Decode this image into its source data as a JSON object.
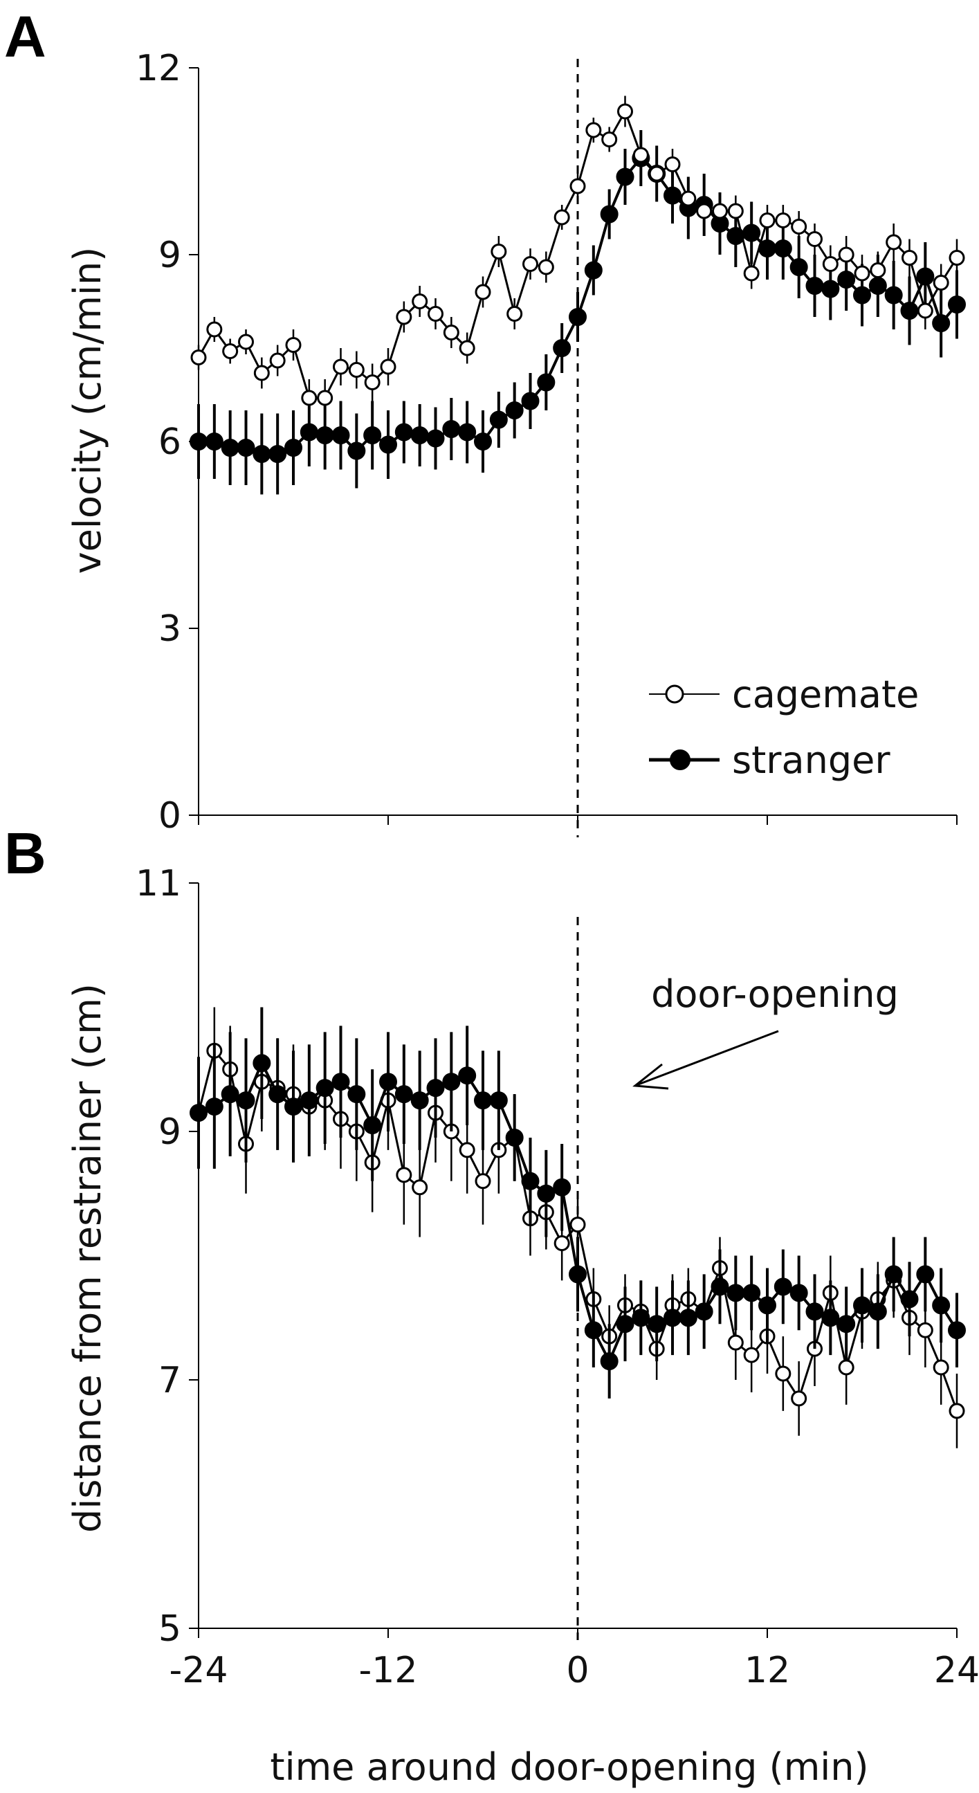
{
  "chart_data": [
    {
      "panel": "A",
      "type": "line",
      "ylabel": "velocity (cm/min)",
      "xlabel": "",
      "ylim": [
        0,
        12
      ],
      "yticks": [
        "0",
        "3",
        "6",
        "9",
        "12"
      ],
      "xlim": [
        -24,
        24
      ],
      "event_line_x": 0,
      "legend": {
        "placement": "bottom-right",
        "items": [
          "cagemate",
          "stranger"
        ]
      },
      "x": [
        -24,
        -23,
        -22,
        -21,
        -20,
        -19,
        -18,
        -17,
        -16,
        -15,
        -14,
        -13,
        -12,
        -11,
        -10,
        -9,
        -8,
        -7,
        -6,
        -5,
        -4,
        -3,
        -2,
        -1,
        0,
        1,
        2,
        3,
        4,
        5,
        6,
        7,
        8,
        9,
        10,
        11,
        12,
        13,
        14,
        15,
        16,
        17,
        18,
        19,
        20,
        21,
        22,
        23,
        24
      ],
      "series": [
        {
          "name": "cagemate",
          "marker": "open-circle",
          "color": "#000000",
          "values": [
            7.35,
            7.8,
            7.45,
            7.6,
            7.1,
            7.3,
            7.55,
            6.7,
            6.7,
            7.2,
            7.15,
            6.95,
            7.2,
            8.0,
            8.25,
            8.05,
            7.75,
            7.5,
            8.4,
            9.05,
            8.05,
            8.85,
            8.8,
            9.6,
            10.1,
            11.0,
            10.85,
            11.3,
            10.6,
            10.3,
            10.45,
            9.9,
            9.7,
            9.7,
            9.7,
            8.7,
            9.55,
            9.55,
            9.45,
            9.25,
            8.85,
            9.0,
            8.7,
            8.75,
            9.2,
            8.95,
            8.1,
            8.55,
            8.95
          ],
          "error": [
            0.2,
            0.2,
            0.2,
            0.2,
            0.25,
            0.25,
            0.25,
            0.3,
            0.3,
            0.3,
            0.3,
            0.3,
            0.3,
            0.25,
            0.25,
            0.25,
            0.25,
            0.25,
            0.25,
            0.25,
            0.25,
            0.25,
            0.25,
            0.2,
            0.2,
            0.2,
            0.2,
            0.25,
            0.25,
            0.25,
            0.25,
            0.25,
            0.25,
            0.25,
            0.25,
            0.25,
            0.25,
            0.25,
            0.25,
            0.25,
            0.3,
            0.3,
            0.3,
            0.3,
            0.3,
            0.3,
            0.3,
            0.3,
            0.3
          ]
        },
        {
          "name": "stranger",
          "marker": "filled-circle",
          "color": "#000000",
          "values": [
            6.0,
            6.0,
            5.9,
            5.9,
            5.8,
            5.8,
            5.9,
            6.15,
            6.1,
            6.1,
            5.85,
            6.1,
            5.95,
            6.15,
            6.1,
            6.05,
            6.2,
            6.15,
            6.0,
            6.35,
            6.5,
            6.65,
            6.95,
            7.5,
            8.0,
            8.75,
            9.65,
            10.25,
            10.55,
            10.3,
            9.95,
            9.75,
            9.8,
            9.5,
            9.3,
            9.35,
            9.1,
            9.1,
            8.8,
            8.5,
            8.45,
            8.6,
            8.35,
            8.5,
            8.35,
            8.1,
            8.65,
            7.9,
            8.2
          ],
          "error": [
            0.6,
            0.6,
            0.6,
            0.6,
            0.65,
            0.65,
            0.6,
            0.55,
            0.55,
            0.55,
            0.6,
            0.55,
            0.55,
            0.5,
            0.5,
            0.5,
            0.5,
            0.5,
            0.5,
            0.45,
            0.45,
            0.45,
            0.45,
            0.4,
            0.4,
            0.4,
            0.4,
            0.45,
            0.45,
            0.45,
            0.45,
            0.5,
            0.5,
            0.5,
            0.5,
            0.5,
            0.5,
            0.5,
            0.5,
            0.5,
            0.5,
            0.5,
            0.5,
            0.5,
            0.55,
            0.55,
            0.55,
            0.55,
            0.55
          ]
        }
      ]
    },
    {
      "panel": "B",
      "type": "line",
      "ylabel": "distance from restrainer (cm)",
      "xlabel": "time around door-opening (min)",
      "ylim": [
        5,
        11
      ],
      "yticks": [
        "5",
        "7",
        "9",
        "11"
      ],
      "xlim": [
        -24,
        24
      ],
      "xticks": [
        "-24",
        "-12",
        "0",
        "12",
        "24"
      ],
      "event_line_x": 0,
      "annotation": "door-opening",
      "x": [
        -24,
        -23,
        -22,
        -21,
        -20,
        -19,
        -18,
        -17,
        -16,
        -15,
        -14,
        -13,
        -12,
        -11,
        -10,
        -9,
        -8,
        -7,
        -6,
        -5,
        -4,
        -3,
        -2,
        -1,
        0,
        1,
        2,
        3,
        4,
        5,
        6,
        7,
        8,
        9,
        10,
        11,
        12,
        13,
        14,
        15,
        16,
        17,
        18,
        19,
        20,
        21,
        22,
        23,
        24
      ],
      "series": [
        {
          "name": "cagemate",
          "marker": "open-circle",
          "color": "#000000",
          "values": [
            9.15,
            9.65,
            9.5,
            8.9,
            9.4,
            9.35,
            9.3,
            9.2,
            9.25,
            9.1,
            9.0,
            8.75,
            9.25,
            8.65,
            8.55,
            9.15,
            9.0,
            8.85,
            8.6,
            8.85,
            8.95,
            8.3,
            8.35,
            8.1,
            8.25,
            7.65,
            7.35,
            7.6,
            7.55,
            7.25,
            7.6,
            7.65,
            7.55,
            7.9,
            7.3,
            7.2,
            7.35,
            7.05,
            6.85,
            7.25,
            7.7,
            7.1,
            7.55,
            7.65,
            7.8,
            7.5,
            7.4,
            7.1,
            6.75
          ],
          "error": [
            0.35,
            0.35,
            0.35,
            0.4,
            0.4,
            0.4,
            0.4,
            0.4,
            0.4,
            0.4,
            0.4,
            0.4,
            0.4,
            0.4,
            0.4,
            0.4,
            0.4,
            0.35,
            0.35,
            0.35,
            0.35,
            0.3,
            0.3,
            0.3,
            0.25,
            0.25,
            0.25,
            0.25,
            0.25,
            0.25,
            0.25,
            0.25,
            0.25,
            0.25,
            0.3,
            0.3,
            0.3,
            0.3,
            0.3,
            0.3,
            0.3,
            0.3,
            0.3,
            0.3,
            0.3,
            0.3,
            0.3,
            0.3,
            0.3
          ]
        },
        {
          "name": "stranger",
          "marker": "filled-circle",
          "color": "#000000",
          "values": [
            9.15,
            9.2,
            9.3,
            9.25,
            9.55,
            9.3,
            9.2,
            9.25,
            9.35,
            9.4,
            9.3,
            9.05,
            9.4,
            9.3,
            9.25,
            9.35,
            9.4,
            9.45,
            9.25,
            9.25,
            8.95,
            8.6,
            8.5,
            8.55,
            7.85,
            7.4,
            7.15,
            7.45,
            7.5,
            7.45,
            7.5,
            7.5,
            7.55,
            7.75,
            7.7,
            7.7,
            7.6,
            7.75,
            7.7,
            7.55,
            7.5,
            7.45,
            7.6,
            7.55,
            7.85,
            7.65,
            7.85,
            7.6,
            7.4
          ],
          "error": [
            0.45,
            0.5,
            0.5,
            0.5,
            0.45,
            0.45,
            0.45,
            0.45,
            0.45,
            0.45,
            0.45,
            0.45,
            0.4,
            0.4,
            0.4,
            0.4,
            0.4,
            0.4,
            0.4,
            0.4,
            0.35,
            0.35,
            0.35,
            0.35,
            0.3,
            0.3,
            0.3,
            0.3,
            0.3,
            0.3,
            0.3,
            0.3,
            0.3,
            0.3,
            0.3,
            0.3,
            0.3,
            0.3,
            0.3,
            0.3,
            0.3,
            0.3,
            0.3,
            0.3,
            0.3,
            0.3,
            0.3,
            0.3,
            0.3
          ]
        }
      ]
    }
  ]
}
